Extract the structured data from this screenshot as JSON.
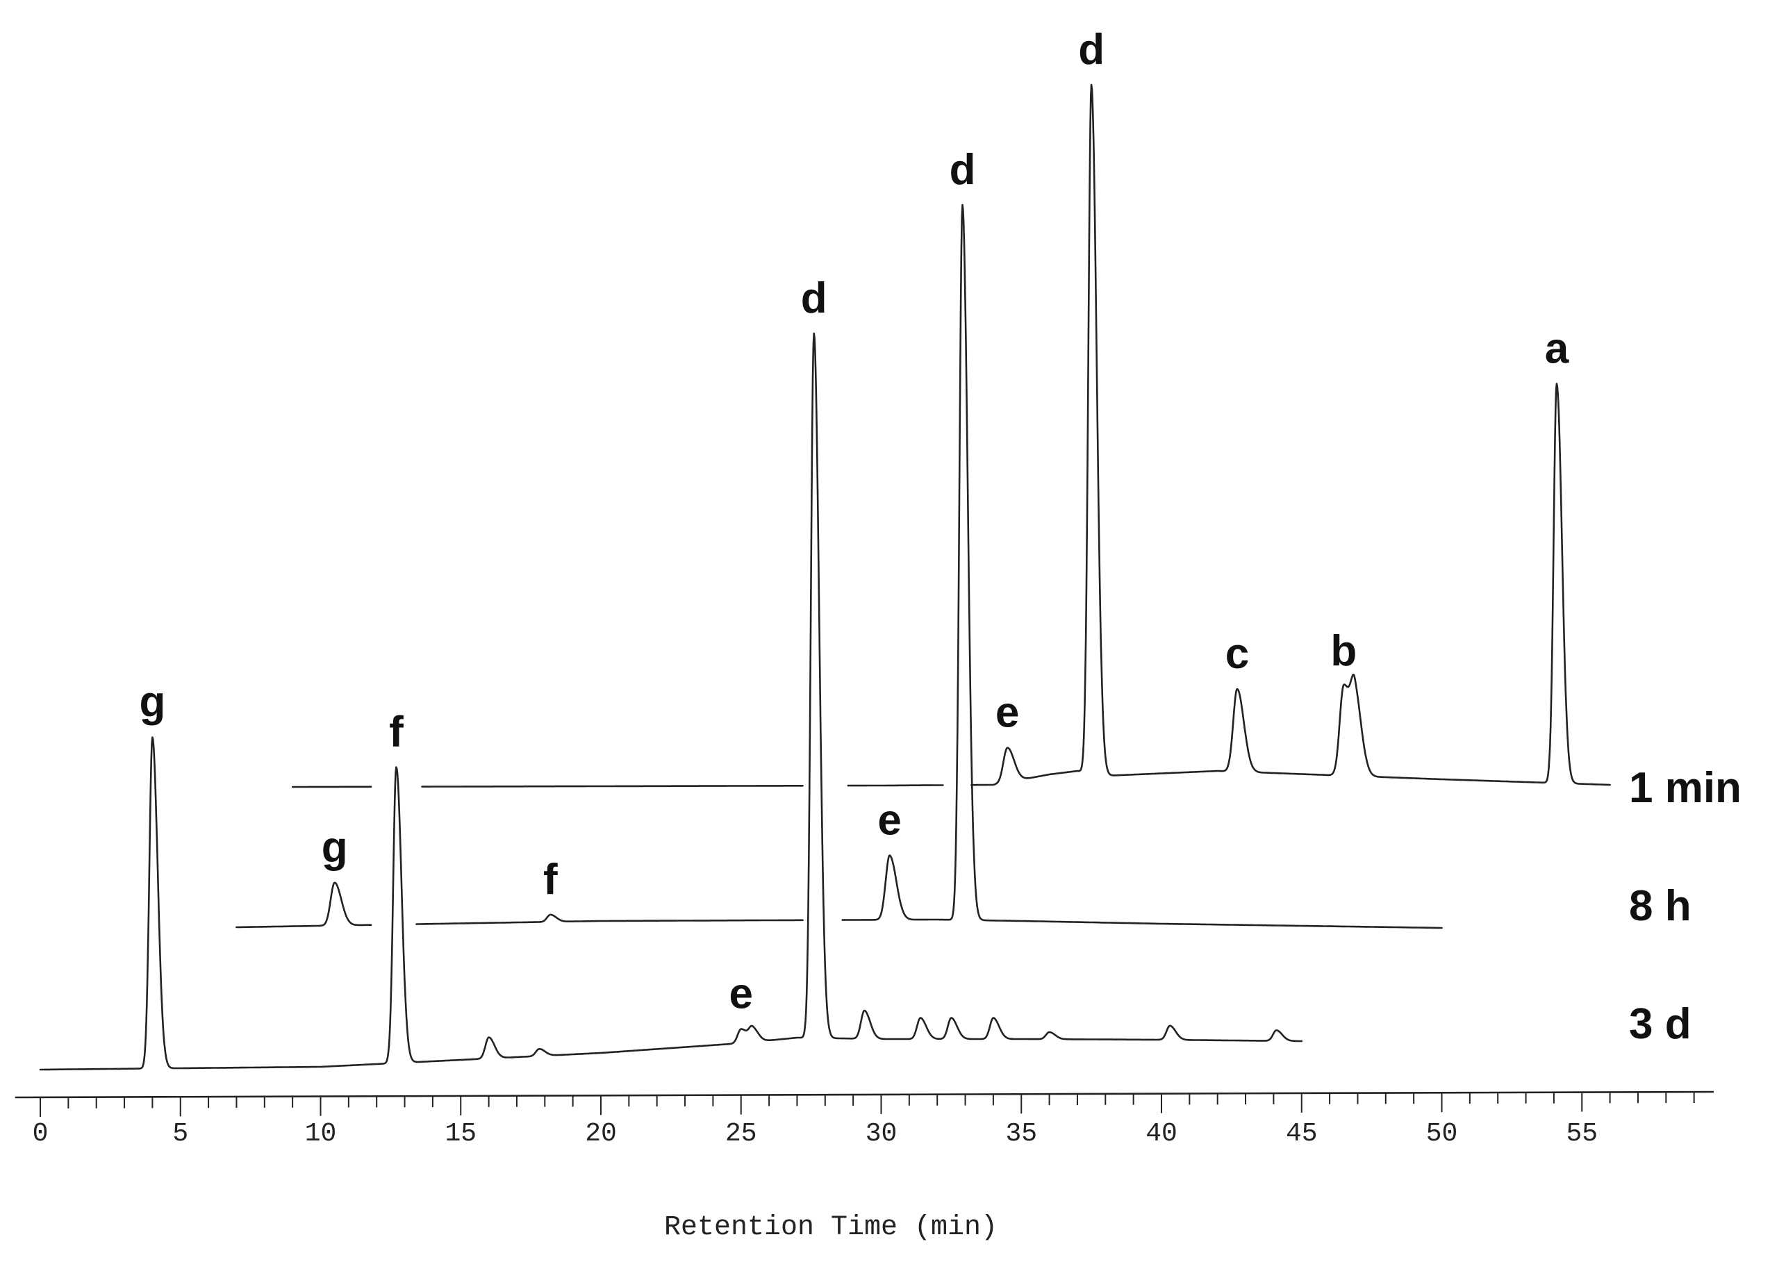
{
  "chart_data": {
    "type": "line",
    "xlabel": "Retention Time (min)",
    "ylabel": "",
    "xlim": [
      0,
      59
    ],
    "xticks": [
      {
        "value": 0,
        "label": "0"
      },
      {
        "value": 5,
        "label": "5"
      },
      {
        "value": 10,
        "label": "10"
      },
      {
        "value": 15,
        "label": "15"
      },
      {
        "value": 20,
        "label": "20"
      },
      {
        "value": 25,
        "label": "25"
      },
      {
        "value": 30,
        "label": "30"
      },
      {
        "value": 35,
        "label": "35"
      },
      {
        "value": 40,
        "label": "40"
      },
      {
        "value": 45,
        "label": "45"
      },
      {
        "value": 50,
        "label": "50"
      },
      {
        "value": 55,
        "label": "55"
      }
    ],
    "grid": false,
    "series": [
      {
        "name": "1 min",
        "x_range": [
          9,
          56
        ],
        "peaks": [
          {
            "label": "e",
            "x": 34.5,
            "height": 0.05
          },
          {
            "label": "d",
            "x": 37.5,
            "height": 1.0
          },
          {
            "label": "c",
            "x": 42.7,
            "height": 0.12
          },
          {
            "label": "b",
            "x": 46.5,
            "height": 0.13
          },
          {
            "label": "b",
            "x": 46.9,
            "height": 0.11
          },
          {
            "label": "a",
            "x": 54.1,
            "height": 0.58
          }
        ]
      },
      {
        "name": "8 h",
        "x_range": [
          7,
          50
        ],
        "peaks": [
          {
            "label": "g",
            "x": 10.5,
            "height": 0.06
          },
          {
            "label": "f",
            "x": 18.2,
            "height": 0.01
          },
          {
            "label": "e",
            "x": 30.3,
            "height": 0.09
          },
          {
            "label": "d",
            "x": 32.9,
            "height": 1.0
          }
        ]
      },
      {
        "name": "3 d",
        "x_range": [
          0,
          45
        ],
        "peaks": [
          {
            "label": "g",
            "x": 4.0,
            "height": 0.47
          },
          {
            "label": "f",
            "x": 12.7,
            "height": 0.42
          },
          {
            "label": "",
            "x": 16.0,
            "height": 0.03
          },
          {
            "label": "",
            "x": 17.8,
            "height": 0.01
          },
          {
            "label": "e",
            "x": 25.0,
            "height": 0.02
          },
          {
            "label": "e",
            "x": 25.4,
            "height": 0.02
          },
          {
            "label": "d",
            "x": 27.6,
            "height": 1.0
          },
          {
            "label": "",
            "x": 29.4,
            "height": 0.04
          },
          {
            "label": "",
            "x": 31.4,
            "height": 0.03
          },
          {
            "label": "",
            "x": 32.5,
            "height": 0.03
          },
          {
            "label": "",
            "x": 34.0,
            "height": 0.03
          },
          {
            "label": "",
            "x": 36.0,
            "height": 0.01
          },
          {
            "label": "",
            "x": 40.3,
            "height": 0.02
          },
          {
            "label": "",
            "x": 44.1,
            "height": 0.015
          }
        ]
      }
    ]
  }
}
